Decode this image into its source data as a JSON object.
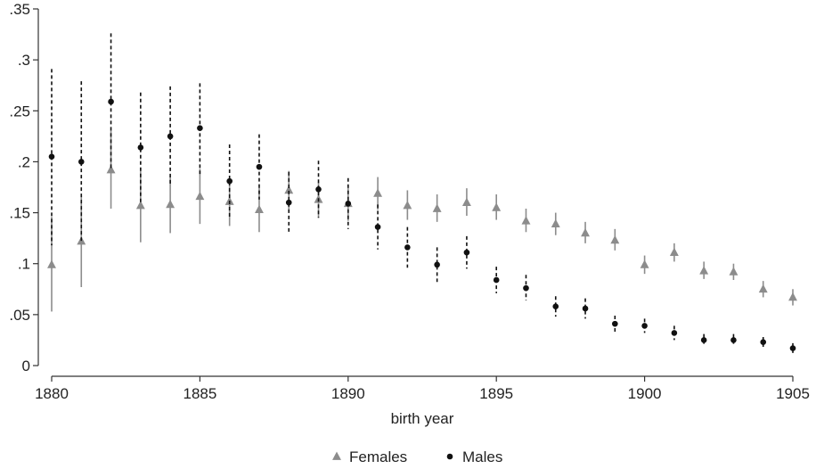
{
  "chart_data": {
    "type": "scatter",
    "xlabel": "birth year",
    "ylabel": "",
    "xlim": [
      1880,
      1905
    ],
    "ylim": [
      0,
      0.35
    ],
    "x_ticks": [
      1880,
      1885,
      1890,
      1895,
      1900,
      1905
    ],
    "x_tick_labels": [
      "1880",
      "1885",
      "1890",
      "1895",
      "1900",
      "1905"
    ],
    "y_ticks": [
      0,
      0.05,
      0.1,
      0.15,
      0.2,
      0.25,
      0.3,
      0.35
    ],
    "y_tick_labels": [
      "0",
      ".05",
      ".1",
      ".15",
      ".2",
      ".25",
      ".3",
      ".35"
    ],
    "grid": false,
    "legend_position": "bottom",
    "series": [
      {
        "name": "Females",
        "marker": "triangle",
        "color": "#8c8c8c",
        "line_style": "solid",
        "x": [
          1880,
          1881,
          1882,
          1883,
          1884,
          1885,
          1886,
          1887,
          1888,
          1889,
          1890,
          1891,
          1892,
          1893,
          1894,
          1895,
          1896,
          1897,
          1898,
          1899,
          1900,
          1901,
          1902,
          1903,
          1904,
          1905
        ],
        "y": [
          0.099,
          0.122,
          0.192,
          0.157,
          0.158,
          0.166,
          0.161,
          0.153,
          0.172,
          0.163,
          0.159,
          0.169,
          0.157,
          0.154,
          0.16,
          0.155,
          0.142,
          0.139,
          0.13,
          0.123,
          0.099,
          0.111,
          0.093,
          0.092,
          0.075,
          0.067
        ],
        "lower": [
          0.053,
          0.077,
          0.154,
          0.121,
          0.13,
          0.139,
          0.137,
          0.131,
          0.153,
          0.145,
          0.142,
          0.153,
          0.143,
          0.141,
          0.147,
          0.143,
          0.131,
          0.128,
          0.12,
          0.113,
          0.09,
          0.102,
          0.085,
          0.084,
          0.067,
          0.059
        ],
        "upper": [
          0.146,
          0.167,
          0.231,
          0.194,
          0.186,
          0.193,
          0.185,
          0.175,
          0.191,
          0.18,
          0.176,
          0.185,
          0.172,
          0.168,
          0.174,
          0.168,
          0.154,
          0.15,
          0.141,
          0.134,
          0.108,
          0.12,
          0.102,
          0.1,
          0.083,
          0.075
        ]
      },
      {
        "name": "Males",
        "marker": "circle",
        "color": "#111111",
        "line_style": "dashed",
        "x": [
          1880,
          1881,
          1882,
          1883,
          1884,
          1885,
          1886,
          1887,
          1888,
          1889,
          1890,
          1891,
          1892,
          1893,
          1894,
          1895,
          1896,
          1897,
          1898,
          1899,
          1900,
          1901,
          1902,
          1903,
          1904,
          1905
        ],
        "y": [
          0.205,
          0.2,
          0.259,
          0.214,
          0.225,
          0.233,
          0.181,
          0.195,
          0.16,
          0.173,
          0.159,
          0.136,
          0.116,
          0.099,
          0.111,
          0.084,
          0.076,
          0.058,
          0.056,
          0.041,
          0.039,
          0.032,
          0.025,
          0.025,
          0.023,
          0.017
        ],
        "lower": [
          0.118,
          0.12,
          0.193,
          0.16,
          0.177,
          0.188,
          0.145,
          0.163,
          0.131,
          0.145,
          0.134,
          0.114,
          0.096,
          0.082,
          0.095,
          0.071,
          0.064,
          0.048,
          0.046,
          0.033,
          0.032,
          0.025,
          0.019,
          0.019,
          0.018,
          0.012
        ],
        "upper": [
          0.291,
          0.279,
          0.326,
          0.268,
          0.274,
          0.277,
          0.217,
          0.227,
          0.19,
          0.201,
          0.184,
          0.158,
          0.136,
          0.116,
          0.127,
          0.097,
          0.089,
          0.068,
          0.066,
          0.049,
          0.046,
          0.039,
          0.031,
          0.031,
          0.028,
          0.022
        ]
      }
    ]
  }
}
